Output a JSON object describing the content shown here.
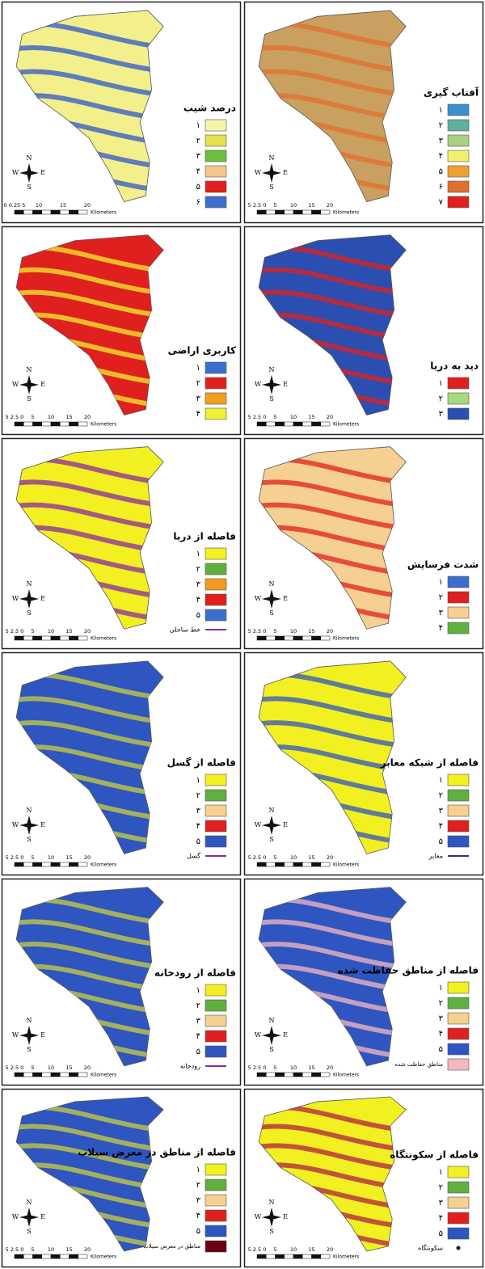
{
  "panels": [
    {
      "title": "درصد شیب",
      "map_fill": "#f3f08c",
      "accent": "#2f55c8",
      "legend": [
        {
          "label": "۱",
          "color": "#f6f4a6"
        },
        {
          "label": "۲",
          "color": "#e2e24a"
        },
        {
          "label": "۳",
          "color": "#6cbf3c"
        },
        {
          "label": "۴",
          "color": "#f6c68c"
        },
        {
          "label": "۵",
          "color": "#e0201e"
        },
        {
          "label": "۶",
          "color": "#3a6fd0"
        }
      ],
      "compass": [
        "N",
        "S",
        "E",
        "W"
      ],
      "scale": [
        "0 0.25 5",
        "10",
        "15",
        "20",
        "Kilometers"
      ]
    },
    {
      "title": "آفتاب گیری",
      "map_fill": "#c9a060",
      "accent": "#e07030",
      "legend": [
        {
          "label": "۱",
          "color": "#3a8fd0"
        },
        {
          "label": "۲",
          "color": "#5fb0a0"
        },
        {
          "label": "۳",
          "color": "#a8d080"
        },
        {
          "label": "۴",
          "color": "#f0f070"
        },
        {
          "label": "۵",
          "color": "#f0a030"
        },
        {
          "label": "۶",
          "color": "#e07030"
        },
        {
          "label": "۷",
          "color": "#e02020"
        }
      ],
      "compass": [
        "N",
        "S",
        "E",
        "W"
      ],
      "scale": [
        "5 2.5 0",
        "5",
        "10",
        "15",
        "20",
        "Kilometers"
      ]
    },
    {
      "title": "کاربری اراضی",
      "map_fill": "#e0201e",
      "accent": "#f0f030",
      "legend": [
        {
          "label": "۱",
          "color": "#3a6fd0"
        },
        {
          "label": "۲",
          "color": "#e0201e"
        },
        {
          "label": "۳",
          "color": "#f0a020"
        },
        {
          "label": "۴",
          "color": "#f0f030"
        }
      ],
      "compass": [
        "N",
        "S",
        "E",
        "W"
      ],
      "scale": [
        "5 2.5 0",
        "5",
        "10",
        "15",
        "20",
        "Kilometers"
      ]
    },
    {
      "title": "دید به دریا",
      "map_fill": "#2a4fb0",
      "accent": "#e0201e",
      "legend": [
        {
          "label": "۱",
          "color": "#e0201e"
        },
        {
          "label": "۲",
          "color": "#a8d880"
        },
        {
          "label": "۳",
          "color": "#2a4fb0"
        }
      ],
      "compass": [
        "N",
        "S",
        "E",
        "W"
      ],
      "scale": [
        "5 2.5 0",
        "5",
        "10",
        "15",
        "20",
        "Kilometers"
      ]
    },
    {
      "title": "فاصله از دریا",
      "map_fill": "#f2f020",
      "accent": "#8a2aa0",
      "legend": [
        {
          "label": "۱",
          "color": "#f2f020"
        },
        {
          "label": "۲",
          "color": "#60b040"
        },
        {
          "label": "۳",
          "color": "#f09a20"
        },
        {
          "label": "۴",
          "color": "#e0201e"
        },
        {
          "label": "۵",
          "color": "#3a6fd0"
        }
      ],
      "line_label": "خط ساحلی",
      "line_color": "#8a2aa0",
      "compass": [
        "N",
        "S",
        "E",
        "W"
      ],
      "scale": [
        "5 2.5 0",
        "5",
        "10",
        "15",
        "20",
        "Kilometers"
      ]
    },
    {
      "title": "شدت فرسایش",
      "map_fill": "#f5d090",
      "accent": "#e0201e",
      "legend": [
        {
          "label": "۱",
          "color": "#3a6fd0"
        },
        {
          "label": "۲",
          "color": "#e0201e"
        },
        {
          "label": "۳",
          "color": "#f5d090"
        },
        {
          "label": "۴",
          "color": "#60b040"
        }
      ],
      "compass": [
        "N",
        "S",
        "E",
        "W"
      ],
      "scale": [
        "5 2.5 0",
        "5",
        "10",
        "15",
        "20",
        "Kilometers"
      ]
    },
    {
      "title": "فاصله از گسل",
      "map_fill": "#2f55c0",
      "accent": "#c8d040",
      "legend": [
        {
          "label": "۱",
          "color": "#f2f020"
        },
        {
          "label": "۲",
          "color": "#60b040"
        },
        {
          "label": "۳",
          "color": "#f5d090"
        },
        {
          "label": "۴",
          "color": "#e0201e"
        },
        {
          "label": "۵",
          "color": "#2f55c0"
        }
      ],
      "line_label": "گسل",
      "line_color": "#8a2aa0",
      "compass": [
        "N",
        "S",
        "E",
        "W"
      ],
      "scale": [
        "5 2.5 0",
        "5",
        "10",
        "15",
        "20",
        "Kilometers"
      ]
    },
    {
      "title": "فاصله از شبکه معابر",
      "map_fill": "#f2f020",
      "accent": "#2f55c0",
      "legend": [
        {
          "label": "۱",
          "color": "#f2f020"
        },
        {
          "label": "۲",
          "color": "#60b040"
        },
        {
          "label": "۳",
          "color": "#f5d090"
        },
        {
          "label": "۴",
          "color": "#e0201e"
        },
        {
          "label": "۵",
          "color": "#2f55c0"
        }
      ],
      "line_label": "معابر",
      "line_color": "#3a2a90",
      "compass": [
        "N",
        "S",
        "E",
        "W"
      ],
      "scale": [
        "5 2.5 0",
        "5",
        "10",
        "15",
        "20",
        "Kilometers"
      ]
    },
    {
      "title": "فاصله از رودخانه",
      "map_fill": "#2f55c0",
      "accent": "#c8d040",
      "legend": [
        {
          "label": "۱",
          "color": "#f2f020"
        },
        {
          "label": "۲",
          "color": "#60b040"
        },
        {
          "label": "۳",
          "color": "#f5d090"
        },
        {
          "label": "۴",
          "color": "#e0201e"
        },
        {
          "label": "۵",
          "color": "#2f55c0"
        }
      ],
      "line_label": "رودخانه",
      "line_color": "#8a2aa0",
      "compass": [
        "N",
        "S",
        "E",
        "W"
      ],
      "scale": [
        "5 2.5 0",
        "5",
        "10",
        "15",
        "20",
        "Kilometers"
      ]
    },
    {
      "title": "فاصله از مناطق حفاظت شده",
      "map_fill": "#2f55c0",
      "accent": "#f5b8c0",
      "legend": [
        {
          "label": "۱",
          "color": "#f2f020"
        },
        {
          "label": "۲",
          "color": "#60b040"
        },
        {
          "label": "۳",
          "color": "#f5d090"
        },
        {
          "label": "۴",
          "color": "#e0201e"
        },
        {
          "label": "۵",
          "color": "#2f55c0"
        },
        {
          "label": "مناطق حفاظت شده",
          "color": "#f5b8c0"
        }
      ],
      "compass": [
        "N",
        "S",
        "E",
        "W"
      ],
      "scale": [
        "5 2.5 0",
        "5",
        "10",
        "15",
        "20",
        "Kilometers"
      ]
    },
    {
      "title": "فاصله از مناطق در معرض سیلاب",
      "map_fill": "#2f55c0",
      "accent": "#c8d040",
      "legend": [
        {
          "label": "۱",
          "color": "#f2f020"
        },
        {
          "label": "۲",
          "color": "#60b040"
        },
        {
          "label": "۳",
          "color": "#f5d090"
        },
        {
          "label": "۴",
          "color": "#e0201e"
        },
        {
          "label": "۵",
          "color": "#2f55c0"
        },
        {
          "label": "مناطق در معرض سیلاب",
          "color": "#6a0010"
        }
      ],
      "compass": [
        "N",
        "S",
        "E",
        "W"
      ],
      "scale": [
        "5 2.5 0",
        "5",
        "10",
        "15",
        "20",
        "Kilometers"
      ]
    },
    {
      "title": "فاصله از سکونتگاه",
      "map_fill": "#f2f020",
      "accent": "#b02040",
      "legend": [
        {
          "label": "۱",
          "color": "#f2f020"
        },
        {
          "label": "۲",
          "color": "#60b040"
        },
        {
          "label": "۳",
          "color": "#f5d090"
        },
        {
          "label": "۴",
          "color": "#e0201e"
        },
        {
          "label": "۵",
          "color": "#2f55c0"
        }
      ],
      "point_label": "سکونتگاه",
      "compass": [
        "N",
        "S",
        "E",
        "W"
      ],
      "scale": [
        "5 2.5 0",
        "5",
        "10",
        "15",
        "20",
        "Kilometers"
      ]
    }
  ]
}
